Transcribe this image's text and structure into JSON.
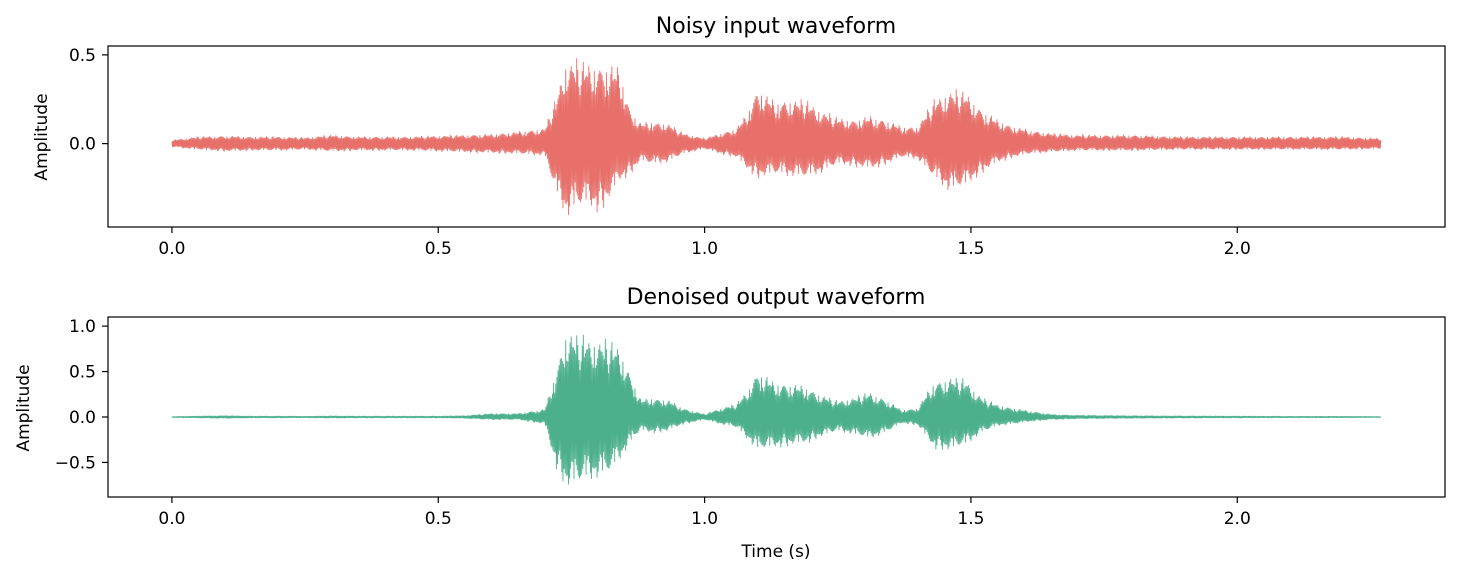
{
  "chart_data": [
    {
      "type": "line",
      "title": "Noisy input waveform",
      "xlabel": "",
      "ylabel": "Amplitude",
      "xlim": [
        -0.12,
        2.39
      ],
      "ylim": [
        -0.47,
        0.55
      ],
      "xticks": [
        0.0,
        0.5,
        1.0,
        1.5,
        2.0
      ],
      "xtick_labels": [
        "0.0",
        "0.5",
        "1.0",
        "1.5",
        "2.0"
      ],
      "yticks": [
        0.5,
        0.0
      ],
      "ytick_labels": [
        "0.5",
        "0.0"
      ],
      "color": "#e8706b",
      "grid": false,
      "series": [
        {
          "x": [
            0.0,
            0.05,
            0.1,
            0.15,
            0.2,
            0.25,
            0.3,
            0.35,
            0.4,
            0.45,
            0.5,
            0.55,
            0.6,
            0.65,
            0.7,
            0.72,
            0.74,
            0.76,
            0.78,
            0.8,
            0.82,
            0.84,
            0.86,
            0.88,
            0.9,
            0.93,
            0.96,
            1.0,
            1.03,
            1.06,
            1.08,
            1.1,
            1.13,
            1.16,
            1.19,
            1.22,
            1.25,
            1.28,
            1.31,
            1.34,
            1.37,
            1.4,
            1.43,
            1.46,
            1.49,
            1.52,
            1.55,
            1.58,
            1.61,
            1.65,
            1.7,
            1.8,
            1.9,
            2.0,
            2.1,
            2.2,
            2.27
          ],
          "envelope_top": [
            0.02,
            0.04,
            0.045,
            0.04,
            0.04,
            0.035,
            0.05,
            0.04,
            0.04,
            0.04,
            0.045,
            0.05,
            0.055,
            0.07,
            0.09,
            0.25,
            0.49,
            0.48,
            0.47,
            0.47,
            0.46,
            0.45,
            0.2,
            0.12,
            0.13,
            0.12,
            0.06,
            0.03,
            0.06,
            0.09,
            0.18,
            0.33,
            0.25,
            0.26,
            0.25,
            0.19,
            0.15,
            0.14,
            0.16,
            0.14,
            0.1,
            0.1,
            0.25,
            0.31,
            0.3,
            0.2,
            0.14,
            0.1,
            0.08,
            0.06,
            0.05,
            0.05,
            0.04,
            0.04,
            0.04,
            0.04,
            0.03
          ],
          "envelope_bottom": [
            -0.02,
            -0.035,
            -0.045,
            -0.04,
            -0.04,
            -0.035,
            -0.045,
            -0.04,
            -0.04,
            -0.04,
            -0.045,
            -0.05,
            -0.055,
            -0.06,
            -0.07,
            -0.28,
            -0.43,
            -0.38,
            -0.36,
            -0.4,
            -0.33,
            -0.22,
            -0.18,
            -0.1,
            -0.12,
            -0.11,
            -0.06,
            -0.03,
            -0.06,
            -0.08,
            -0.15,
            -0.2,
            -0.18,
            -0.19,
            -0.2,
            -0.17,
            -0.12,
            -0.13,
            -0.15,
            -0.12,
            -0.08,
            -0.09,
            -0.2,
            -0.28,
            -0.25,
            -0.17,
            -0.11,
            -0.08,
            -0.06,
            -0.05,
            -0.04,
            -0.04,
            -0.035,
            -0.035,
            -0.035,
            -0.035,
            -0.03
          ]
        }
      ]
    },
    {
      "type": "line",
      "title": "Denoised output waveform",
      "xlabel": "Time (s)",
      "ylabel": "Amplitude",
      "xlim": [
        -0.12,
        2.39
      ],
      "ylim": [
        -0.88,
        1.1
      ],
      "xticks": [
        0.0,
        0.5,
        1.0,
        1.5,
        2.0
      ],
      "xtick_labels": [
        "0.0",
        "0.5",
        "1.0",
        "1.5",
        "2.0"
      ],
      "yticks": [
        1.0,
        0.5,
        0.0,
        -0.5
      ],
      "ytick_labels": [
        "1.0",
        "0.5",
        "0.0",
        "−0.5"
      ],
      "color": "#4cb08c",
      "grid": false,
      "series": [
        {
          "x": [
            0.0,
            0.05,
            0.1,
            0.15,
            0.2,
            0.25,
            0.3,
            0.35,
            0.4,
            0.45,
            0.5,
            0.55,
            0.6,
            0.65,
            0.7,
            0.72,
            0.74,
            0.76,
            0.78,
            0.8,
            0.82,
            0.84,
            0.86,
            0.88,
            0.9,
            0.93,
            0.96,
            1.0,
            1.03,
            1.06,
            1.08,
            1.1,
            1.13,
            1.16,
            1.19,
            1.22,
            1.25,
            1.28,
            1.31,
            1.34,
            1.37,
            1.4,
            1.43,
            1.46,
            1.49,
            1.52,
            1.55,
            1.58,
            1.61,
            1.65,
            1.7,
            1.8,
            1.9,
            2.0,
            2.1,
            2.2,
            2.27
          ],
          "envelope_top": [
            0.005,
            0.01,
            0.015,
            0.01,
            0.01,
            0.008,
            0.012,
            0.01,
            0.01,
            0.01,
            0.01,
            0.015,
            0.04,
            0.04,
            0.09,
            0.5,
            0.99,
            0.92,
            0.9,
            0.88,
            0.86,
            0.8,
            0.5,
            0.2,
            0.22,
            0.2,
            0.1,
            0.03,
            0.1,
            0.15,
            0.3,
            0.53,
            0.4,
            0.38,
            0.35,
            0.25,
            0.18,
            0.22,
            0.28,
            0.2,
            0.08,
            0.1,
            0.4,
            0.45,
            0.42,
            0.22,
            0.14,
            0.1,
            0.07,
            0.03,
            0.02,
            0.015,
            0.012,
            0.01,
            0.008,
            0.008,
            0.005
          ],
          "envelope_bottom": [
            -0.005,
            -0.01,
            -0.015,
            -0.01,
            -0.01,
            -0.008,
            -0.012,
            -0.01,
            -0.01,
            -0.01,
            -0.01,
            -0.015,
            -0.03,
            -0.03,
            -0.08,
            -0.55,
            -0.8,
            -0.78,
            -0.72,
            -0.7,
            -0.65,
            -0.5,
            -0.3,
            -0.15,
            -0.18,
            -0.16,
            -0.08,
            -0.03,
            -0.08,
            -0.12,
            -0.25,
            -0.38,
            -0.35,
            -0.32,
            -0.3,
            -0.22,
            -0.16,
            -0.2,
            -0.25,
            -0.18,
            -0.07,
            -0.09,
            -0.35,
            -0.38,
            -0.32,
            -0.18,
            -0.1,
            -0.08,
            -0.05,
            -0.03,
            -0.02,
            -0.015,
            -0.012,
            -0.01,
            -0.008,
            -0.008,
            -0.005
          ]
        }
      ]
    }
  ]
}
